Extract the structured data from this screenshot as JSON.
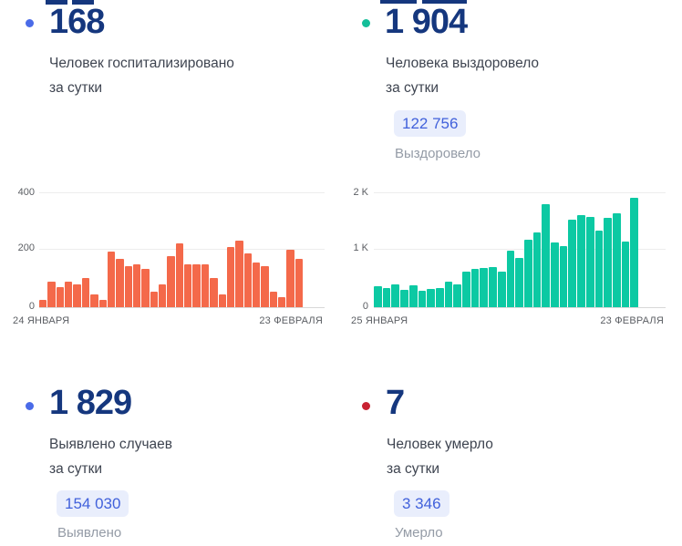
{
  "colors": {
    "accent_navy": "#15377E",
    "badge_bg": "#E9EEFC",
    "badge_text": "#4161DB",
    "label_gray": "#949BA6",
    "dot_blue": "#4A6BE8",
    "dot_green": "#14BE99",
    "dot_red": "#C92232",
    "hospitalized_bar": "#F4694A",
    "recovered_bar": "#0CC9A3"
  },
  "cards": [
    {
      "id": "hospitalized",
      "value": "168",
      "dot_color": "#4A6BE8",
      "description_line1": "Человек госпитализировано",
      "description_line2": "за сутки"
    },
    {
      "id": "recovered",
      "value": "1 904",
      "dot_color": "#14BE99",
      "description_line1": "Человека выздоровело",
      "description_line2": "за сутки",
      "total_value": "122 756",
      "total_label": "Выздоровело"
    },
    {
      "id": "detected",
      "value": "1 829",
      "dot_color": "#4A6BE8",
      "description_line1": "Выявлено случаев",
      "description_line2": "за сутки",
      "total_value": "154 030",
      "total_label": "Выявлено"
    },
    {
      "id": "died",
      "value": "7",
      "dot_color": "#C92232",
      "description_line1": "Человек умерло",
      "description_line2": "за сутки",
      "total_value": "3 346",
      "total_label": "Умерло"
    }
  ],
  "chart_data": [
    {
      "type": "bar",
      "title": "Человек госпитализировано за сутки",
      "color": "#F4694A",
      "x_start_label": "24 ЯНВАРЯ",
      "x_end_label": "23 ФЕВРАЛЯ",
      "y_ticks": [
        "400",
        "200",
        "0"
      ],
      "ylim": [
        0,
        400
      ],
      "grid": true,
      "values": [
        25,
        90,
        70,
        90,
        80,
        100,
        45,
        25,
        195,
        168,
        143,
        148,
        133,
        53,
        80,
        178,
        222,
        148,
        150,
        150,
        100,
        45,
        210,
        232,
        188,
        155,
        143,
        55,
        35,
        200,
        168
      ]
    },
    {
      "type": "bar",
      "title": "Человека выздоровело за сутки",
      "color": "#0CC9A3",
      "x_start_label": "25 ЯНВАРЯ",
      "x_end_label": "23 ФЕВРАЛЯ",
      "y_ticks": [
        "2 K",
        "1 K",
        "0"
      ],
      "ylim": [
        0,
        2000
      ],
      "grid": true,
      "values": [
        360,
        340,
        400,
        300,
        380,
        290,
        310,
        340,
        450,
        400,
        620,
        660,
        680,
        700,
        620,
        990,
        850,
        1170,
        1300,
        1800,
        1120,
        1070,
        1520,
        1600,
        1570,
        1330,
        1550,
        1630,
        1140,
        1904
      ]
    }
  ]
}
